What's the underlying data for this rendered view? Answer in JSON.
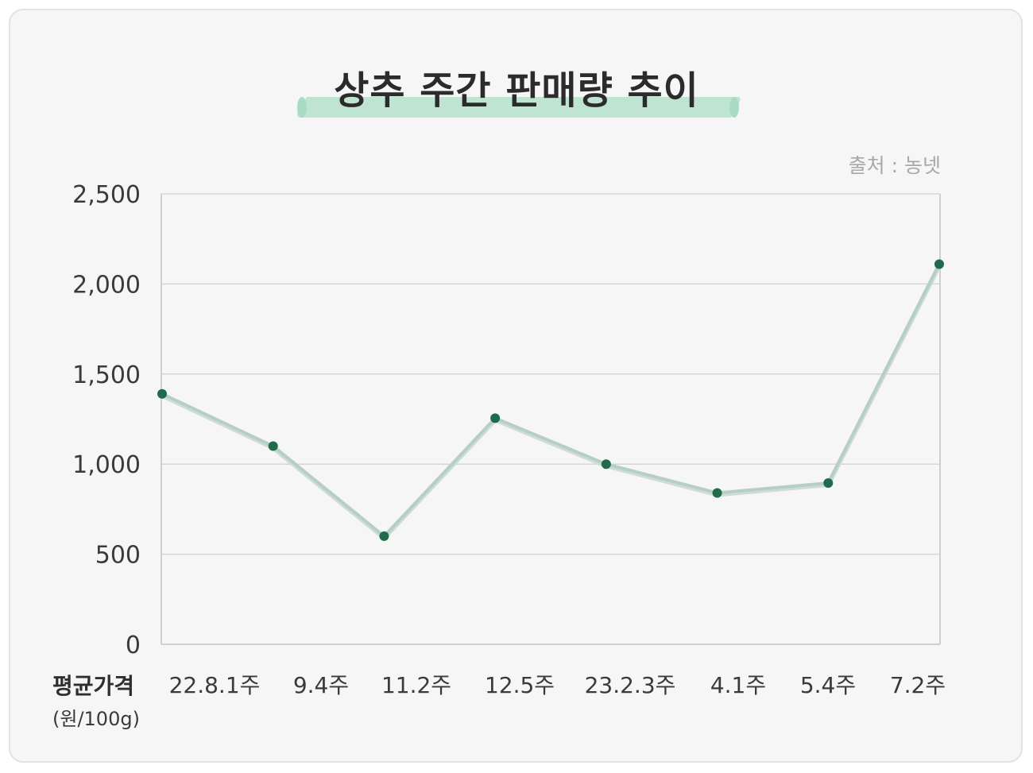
{
  "title": "상추 주간 판매량 추이",
  "source": "출처 : 농넷",
  "ylabel_main": "평균가격",
  "ylabel_unit": "(원/100g)",
  "colors": {
    "background": "#f6f6f6",
    "highlight": "#bfe5d2",
    "line": "#b6cfc4",
    "point": "#1f6b4c",
    "grid": "#d6d6d6",
    "axis": "#cfcfcf"
  },
  "chart_data": {
    "type": "line",
    "title": "상추 주간 판매량 추이",
    "xlabel": "",
    "ylabel": "평균가격 (원/100g)",
    "categories": [
      "22.8.1주",
      "9.4주",
      "11.2주",
      "12.5주",
      "23.2.3주",
      "4.1주",
      "5.4주",
      "7.2주"
    ],
    "series": [
      {
        "values": [
          1390,
          1100,
          600,
          1255,
          1000,
          840,
          895,
          2110
        ]
      }
    ],
    "ylim": [
      0,
      2500
    ],
    "yticks": [
      0,
      500,
      1000,
      1500,
      2000,
      2500
    ],
    "ytick_labels": [
      "0",
      "500",
      "1,000",
      "1,500",
      "2,000",
      "2,500"
    ],
    "grid": true
  }
}
